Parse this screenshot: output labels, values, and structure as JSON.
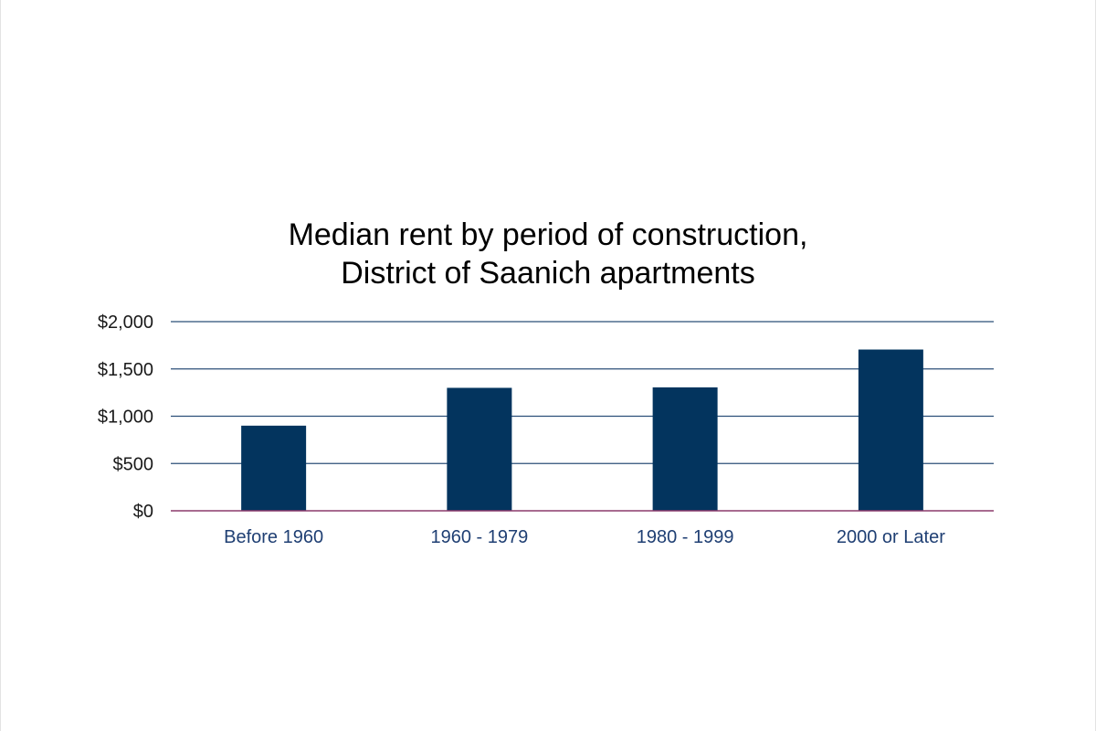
{
  "chart_data": {
    "type": "bar",
    "title": [
      "Median rent by period of construction,",
      "District of Saanich apartments"
    ],
    "xlabel": "",
    "ylabel": "",
    "categories": [
      "Before 1960",
      "1960 - 1979",
      "1980 - 1999",
      "2000 or Later"
    ],
    "values": [
      900,
      1300,
      1305,
      1705
    ],
    "ylim": [
      0,
      2000
    ],
    "yticks": [
      0,
      500,
      1000,
      1500,
      2000
    ],
    "ytick_labels": [
      "$0",
      "$500",
      "$1,000",
      "$1,500",
      "$2,000"
    ],
    "grid": true,
    "legend": "none",
    "colors": {
      "bar": "#03345e",
      "gridline": "#2b4f78",
      "baseline": "#8b3a6b",
      "category_label": "#1f3f73",
      "tick_label": "#1a1a1a"
    }
  }
}
